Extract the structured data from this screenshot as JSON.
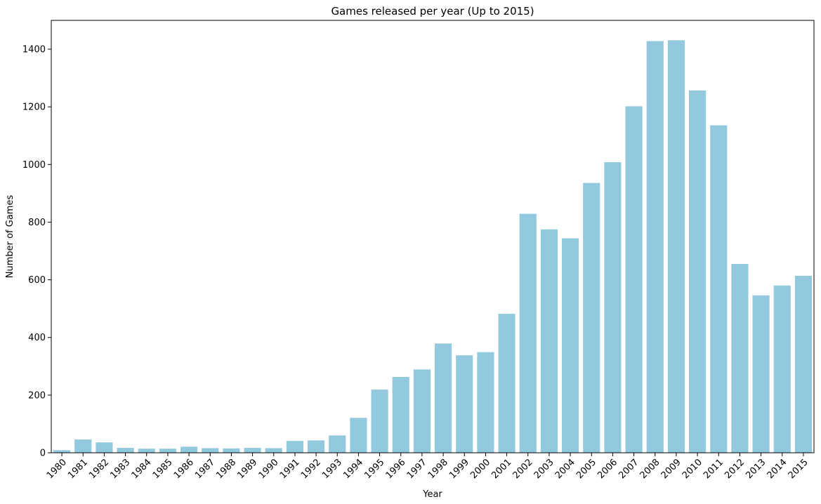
{
  "chart_data": {
    "type": "bar",
    "title": "Games released per year (Up to 2015)",
    "xlabel": "Year",
    "ylabel": "Number of Games",
    "ylim": [
      0,
      1500
    ],
    "yticks": [
      0,
      200,
      400,
      600,
      800,
      1000,
      1200,
      1400
    ],
    "grid": false,
    "bar_color": "#92c9de",
    "categories": [
      "1980",
      "1981",
      "1982",
      "1983",
      "1984",
      "1985",
      "1986",
      "1987",
      "1988",
      "1989",
      "1990",
      "1991",
      "1992",
      "1993",
      "1994",
      "1995",
      "1996",
      "1997",
      "1998",
      "1999",
      "2000",
      "2001",
      "2002",
      "2003",
      "2004",
      "2005",
      "2006",
      "2007",
      "2008",
      "2009",
      "2010",
      "2011",
      "2012",
      "2013",
      "2014",
      "2015"
    ],
    "values": [
      9,
      46,
      36,
      17,
      14,
      14,
      21,
      16,
      15,
      17,
      16,
      41,
      43,
      60,
      121,
      219,
      263,
      289,
      379,
      338,
      349,
      482,
      829,
      775,
      744,
      936,
      1008,
      1202,
      1428,
      1431,
      1257,
      1136,
      655,
      546,
      580,
      614
    ]
  }
}
